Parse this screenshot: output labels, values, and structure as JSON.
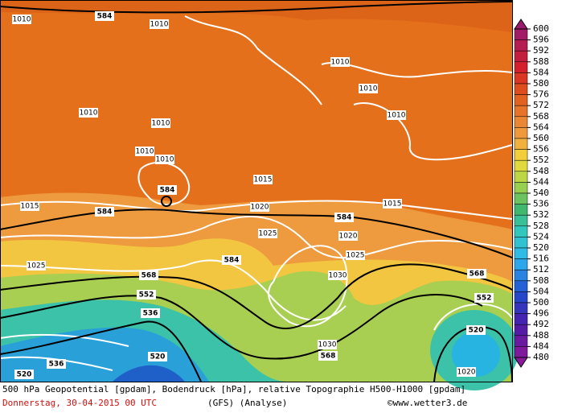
{
  "map": {
    "caption": "500 hPa Geopotential [gpdam], Bodendruck [hPa], relative Topographie H500-H1000 [gpdam]",
    "date": "Donnerstag, 30-04-2015  00 UTC",
    "model": "(GFS)  (Analyse)",
    "credit": "©www.wetter3.de",
    "colorbar": [
      600,
      596,
      592,
      588,
      584,
      580,
      576,
      572,
      568,
      564,
      560,
      556,
      552,
      548,
      544,
      540,
      536,
      532,
      528,
      524,
      520,
      516,
      512,
      508,
      504,
      500,
      496,
      492,
      488,
      484,
      480
    ],
    "labels": [
      "584",
      "1010",
      "1010",
      "1010",
      "1010",
      "1010",
      "1010",
      "1010",
      "1010",
      "1010",
      "1015",
      "1015",
      "1015",
      "584",
      "584",
      "584",
      "584",
      "1020",
      "1020",
      "1025",
      "1025",
      "1030",
      "1030",
      "568",
      "568",
      "568",
      "552",
      "552",
      "536",
      "536",
      "520",
      "520",
      "520",
      "1025",
      "1020"
    ]
  }
}
